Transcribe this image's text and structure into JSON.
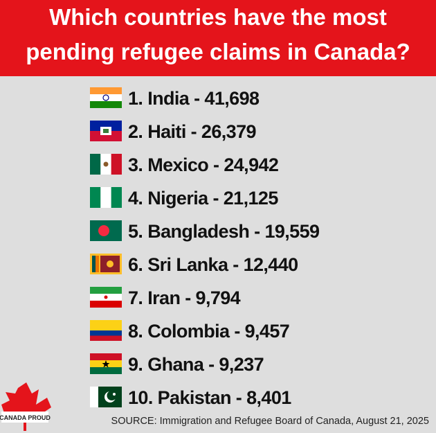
{
  "header": {
    "title": [
      "Which countries have the most",
      "pending refugee claims in Canada?"
    ]
  },
  "items": [
    "1. India - 41,698",
    "2. Haiti - 26,379",
    "3. Mexico - 24,942",
    "4. Nigeria - 21,125",
    "5. Bangladesh - 19,559",
    "6. Sri Lanka - 12,440",
    "7. Iran - 9,794",
    "8. Colombia - 9,457",
    "9. Ghana - 9,237",
    "10. Pakistan - 8,401"
  ],
  "logo": {
    "text": "CANADA PROUD"
  },
  "source": "SOURCE: Immigration and Refugee Board of Canada, August 21, 2025"
}
